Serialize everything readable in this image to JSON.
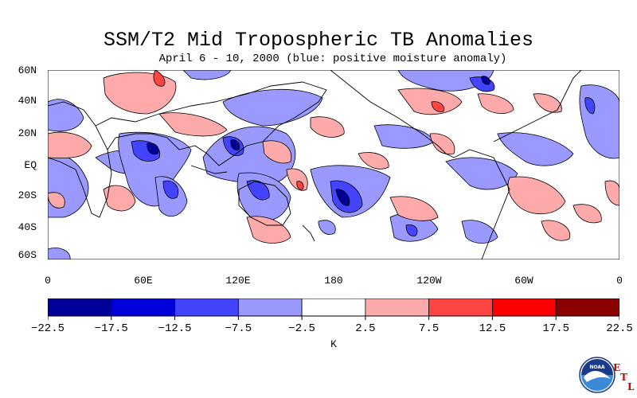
{
  "title": "SSM/T2 Mid Tropospheric TB Anomalies",
  "subtitle": "April 6 - 10, 2000 (blue: positive moisture anomaly)",
  "lat_labels": [
    "60N",
    "40N",
    "20N",
    "EQ",
    "20S",
    "40S",
    "60S"
  ],
  "lon_labels": [
    "0",
    "60E",
    "120E",
    "180",
    "120W",
    "60W",
    "0"
  ],
  "colorbar": {
    "unit": "K",
    "tick_labels": [
      "-22.5",
      "-17.5",
      "-12.5",
      "-7.5",
      "-2.5",
      "2.5",
      "7.5",
      "12.5",
      "17.5",
      "22.5"
    ],
    "colors": [
      "#000099",
      "#0000dd",
      "#4444ff",
      "#9999ff",
      "#ffffff",
      "#ffaaaa",
      "#ff4444",
      "#ff0000",
      "#8b0000"
    ]
  },
  "logo": {
    "icon": "noaa-logo-icon",
    "lettering": "NOAA",
    "etl": [
      "E",
      "T",
      "L"
    ]
  }
}
